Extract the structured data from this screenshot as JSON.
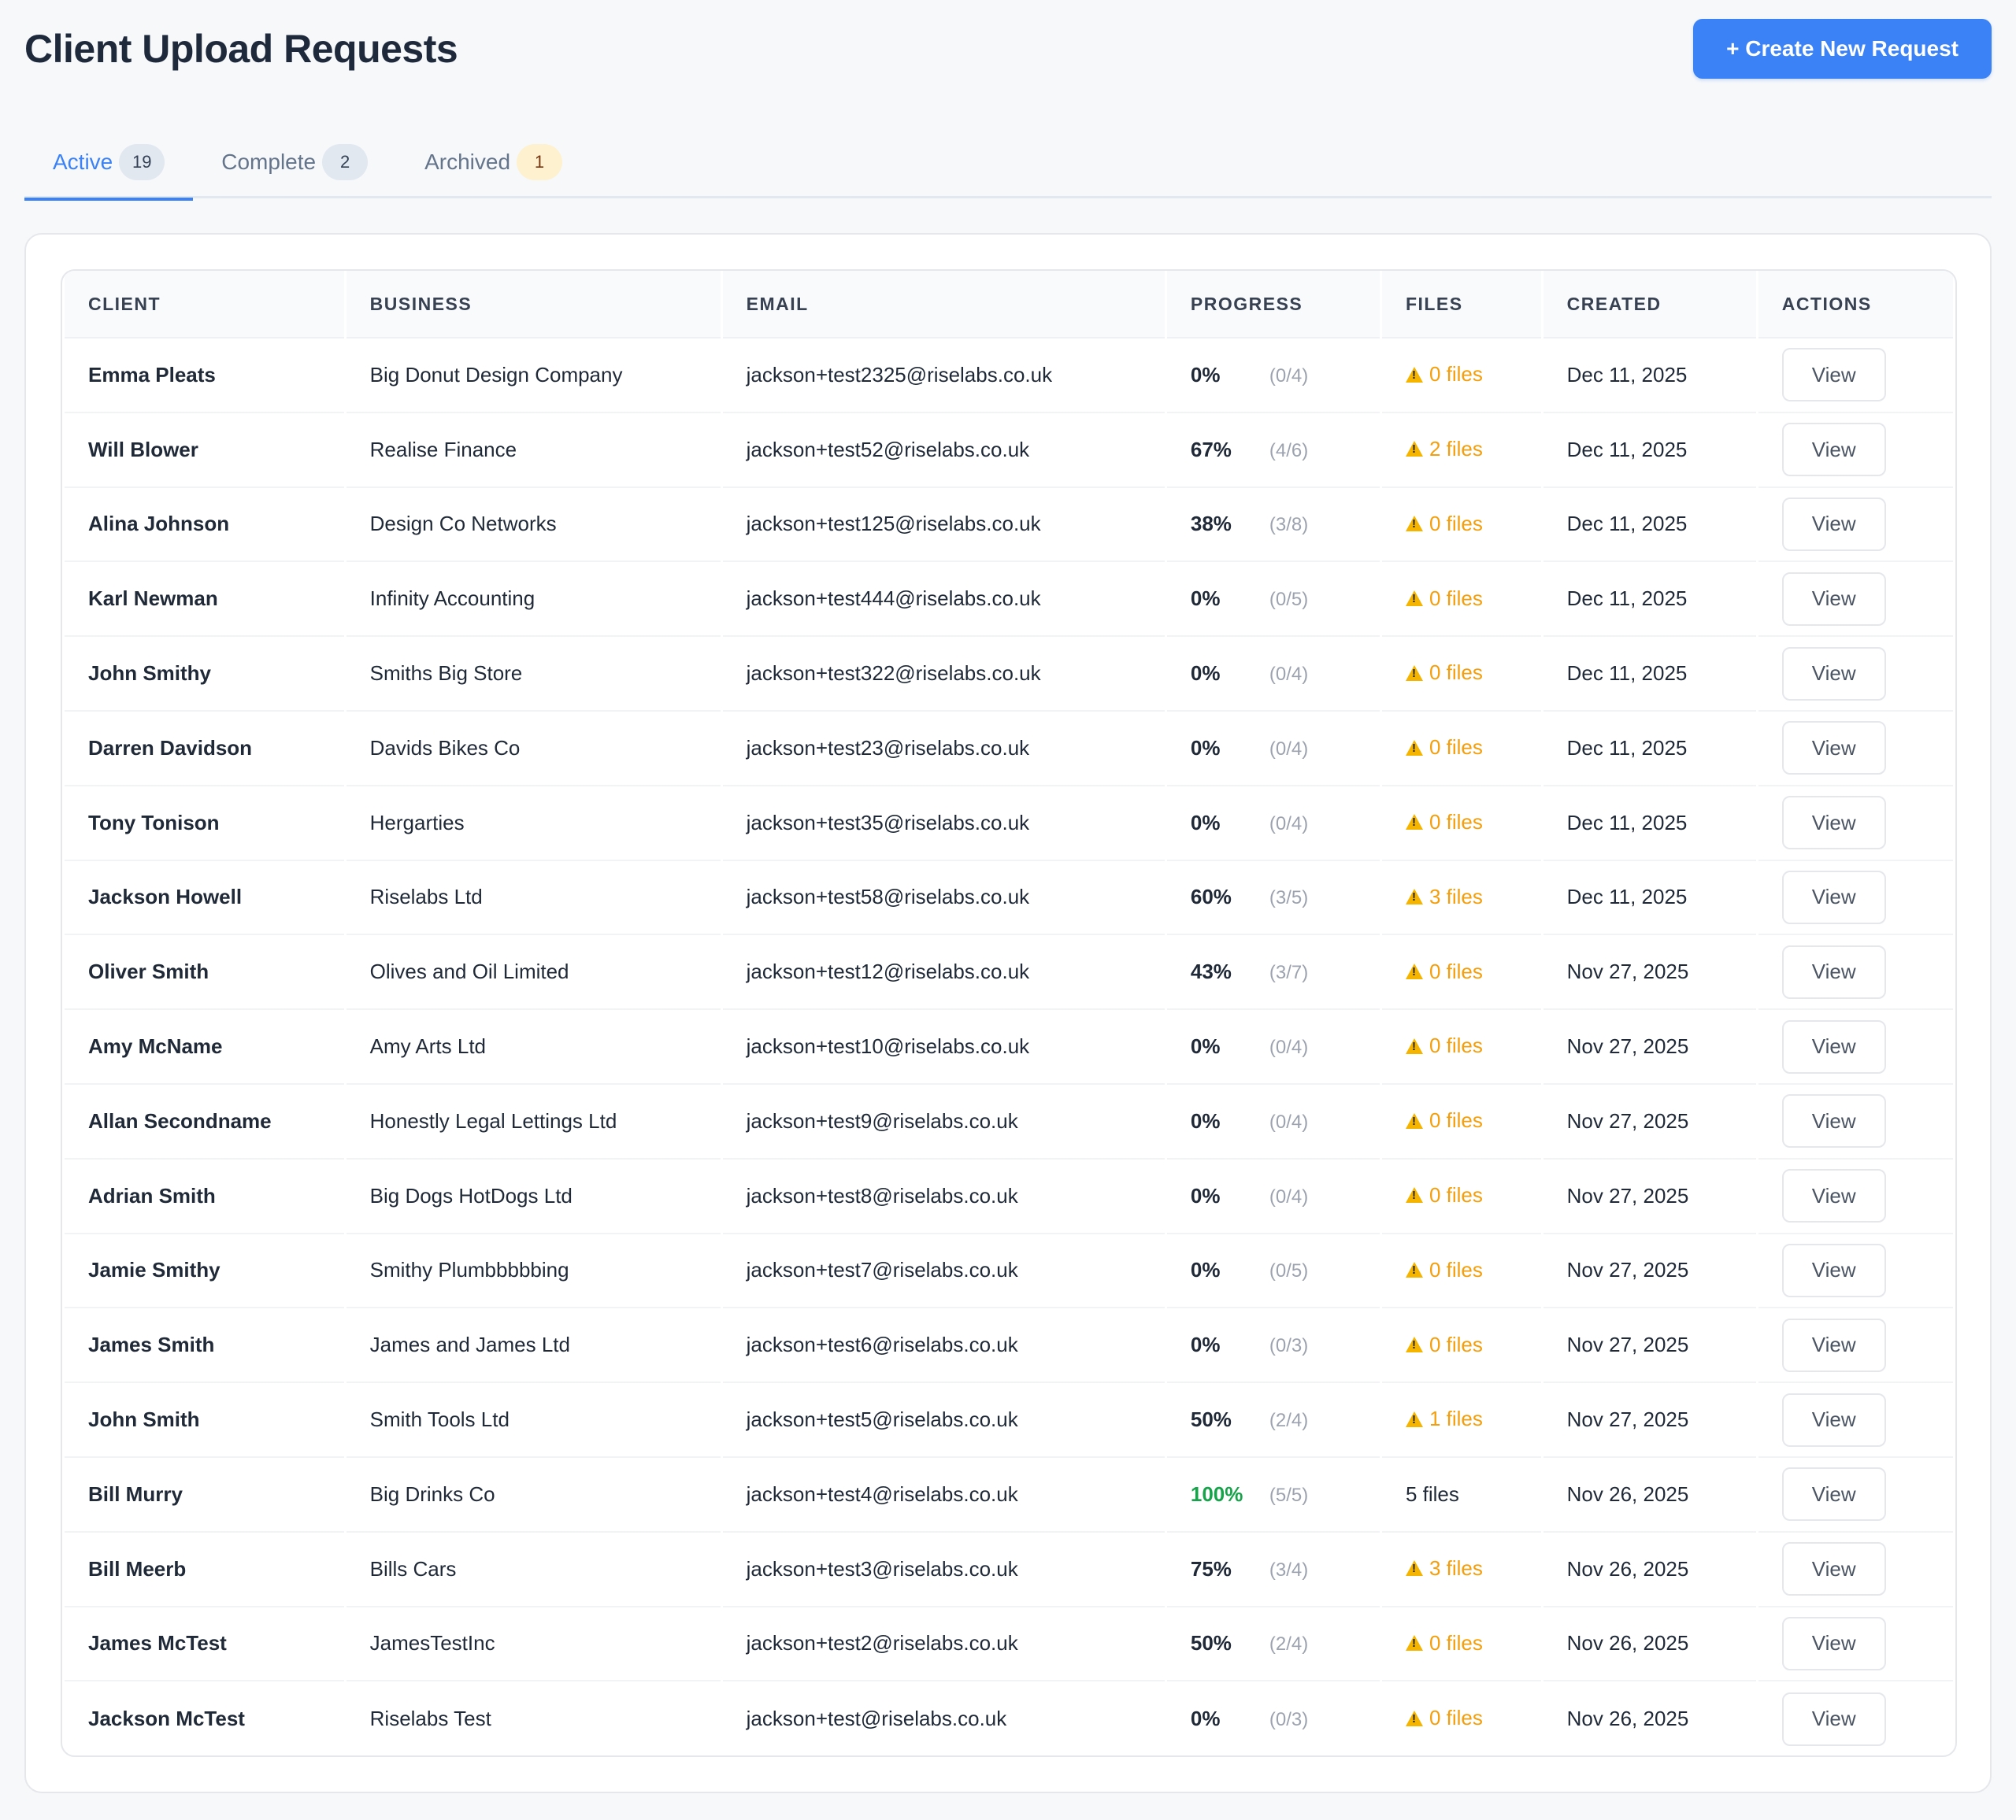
{
  "header": {
    "title": "Client Upload Requests",
    "create_button": "+ Create New Request"
  },
  "tabs": [
    {
      "label": "Active",
      "count": "19"
    },
    {
      "label": "Complete",
      "count": "2"
    },
    {
      "label": "Archived",
      "count": "1"
    }
  ],
  "table": {
    "columns": [
      "CLIENT",
      "BUSINESS",
      "EMAIL",
      "PROGRESS",
      "FILES",
      "CREATED",
      "ACTIONS"
    ],
    "view_label": "View",
    "rows": [
      {
        "client": "Emma Pleats",
        "business": "Big Donut Design Company",
        "email": "jackson+test2325@riselabs.co.uk",
        "progress": "0%",
        "fraction": "(0/4)",
        "files": "0 files",
        "files_warning": true,
        "created": "Dec 11, 2025"
      },
      {
        "client": "Will Blower",
        "business": "Realise Finance",
        "email": "jackson+test52@riselabs.co.uk",
        "progress": "67%",
        "fraction": "(4/6)",
        "files": "2 files",
        "files_warning": true,
        "created": "Dec 11, 2025"
      },
      {
        "client": "Alina Johnson",
        "business": "Design Co Networks",
        "email": "jackson+test125@riselabs.co.uk",
        "progress": "38%",
        "fraction": "(3/8)",
        "files": "0 files",
        "files_warning": true,
        "created": "Dec 11, 2025"
      },
      {
        "client": "Karl Newman",
        "business": "Infinity Accounting",
        "email": "jackson+test444@riselabs.co.uk",
        "progress": "0%",
        "fraction": "(0/5)",
        "files": "0 files",
        "files_warning": true,
        "created": "Dec 11, 2025"
      },
      {
        "client": "John Smithy",
        "business": "Smiths Big Store",
        "email": "jackson+test322@riselabs.co.uk",
        "progress": "0%",
        "fraction": "(0/4)",
        "files": "0 files",
        "files_warning": true,
        "created": "Dec 11, 2025"
      },
      {
        "client": "Darren Davidson",
        "business": "Davids Bikes Co",
        "email": "jackson+test23@riselabs.co.uk",
        "progress": "0%",
        "fraction": "(0/4)",
        "files": "0 files",
        "files_warning": true,
        "created": "Dec 11, 2025"
      },
      {
        "client": "Tony Tonison",
        "business": "Hergarties",
        "email": "jackson+test35@riselabs.co.uk",
        "progress": "0%",
        "fraction": "(0/4)",
        "files": "0 files",
        "files_warning": true,
        "created": "Dec 11, 2025"
      },
      {
        "client": "Jackson Howell",
        "business": "Riselabs Ltd",
        "email": "jackson+test58@riselabs.co.uk",
        "progress": "60%",
        "fraction": "(3/5)",
        "files": "3 files",
        "files_warning": true,
        "created": "Dec 11, 2025"
      },
      {
        "client": "Oliver Smith",
        "business": "Olives and Oil Limited",
        "email": "jackson+test12@riselabs.co.uk",
        "progress": "43%",
        "fraction": "(3/7)",
        "files": "0 files",
        "files_warning": true,
        "created": "Nov 27, 2025"
      },
      {
        "client": "Amy McName",
        "business": "Amy Arts Ltd",
        "email": "jackson+test10@riselabs.co.uk",
        "progress": "0%",
        "fraction": "(0/4)",
        "files": "0 files",
        "files_warning": true,
        "created": "Nov 27, 2025"
      },
      {
        "client": "Allan Secondname",
        "business": "Honestly Legal Lettings Ltd",
        "email": "jackson+test9@riselabs.co.uk",
        "progress": "0%",
        "fraction": "(0/4)",
        "files": "0 files",
        "files_warning": true,
        "created": "Nov 27, 2025"
      },
      {
        "client": "Adrian Smith",
        "business": "Big Dogs HotDogs Ltd",
        "email": "jackson+test8@riselabs.co.uk",
        "progress": "0%",
        "fraction": "(0/4)",
        "files": "0 files",
        "files_warning": true,
        "created": "Nov 27, 2025"
      },
      {
        "client": "Jamie Smithy",
        "business": "Smithy Plumbbbbbing",
        "email": "jackson+test7@riselabs.co.uk",
        "progress": "0%",
        "fraction": "(0/5)",
        "files": "0 files",
        "files_warning": true,
        "created": "Nov 27, 2025"
      },
      {
        "client": "James Smith",
        "business": "James and James Ltd",
        "email": "jackson+test6@riselabs.co.uk",
        "progress": "0%",
        "fraction": "(0/3)",
        "files": "0 files",
        "files_warning": true,
        "created": "Nov 27, 2025"
      },
      {
        "client": "John Smith",
        "business": "Smith Tools Ltd",
        "email": "jackson+test5@riselabs.co.uk",
        "progress": "50%",
        "fraction": "(2/4)",
        "files": "1 files",
        "files_warning": true,
        "created": "Nov 27, 2025"
      },
      {
        "client": "Bill Murry",
        "business": "Big Drinks Co",
        "email": "jackson+test4@riselabs.co.uk",
        "progress": "100%",
        "fraction": "(5/5)",
        "files": "5 files",
        "files_warning": false,
        "created": "Nov 26, 2025"
      },
      {
        "client": "Bill Meerb",
        "business": "Bills Cars",
        "email": "jackson+test3@riselabs.co.uk",
        "progress": "75%",
        "fraction": "(3/4)",
        "files": "3 files",
        "files_warning": true,
        "created": "Nov 26, 2025"
      },
      {
        "client": "James McTest",
        "business": "JamesTestInc",
        "email": "jackson+test2@riselabs.co.uk",
        "progress": "50%",
        "fraction": "(2/4)",
        "files": "0 files",
        "files_warning": true,
        "created": "Nov 26, 2025"
      },
      {
        "client": "Jackson McTest",
        "business": "Riselabs Test",
        "email": "jackson+test@riselabs.co.uk",
        "progress": "0%",
        "fraction": "(0/3)",
        "files": "0 files",
        "files_warning": true,
        "created": "Nov 26, 2025"
      }
    ]
  },
  "colors": {
    "accent": "#3b82f6",
    "warning": "#f59e0b",
    "success": "#16a34a"
  }
}
